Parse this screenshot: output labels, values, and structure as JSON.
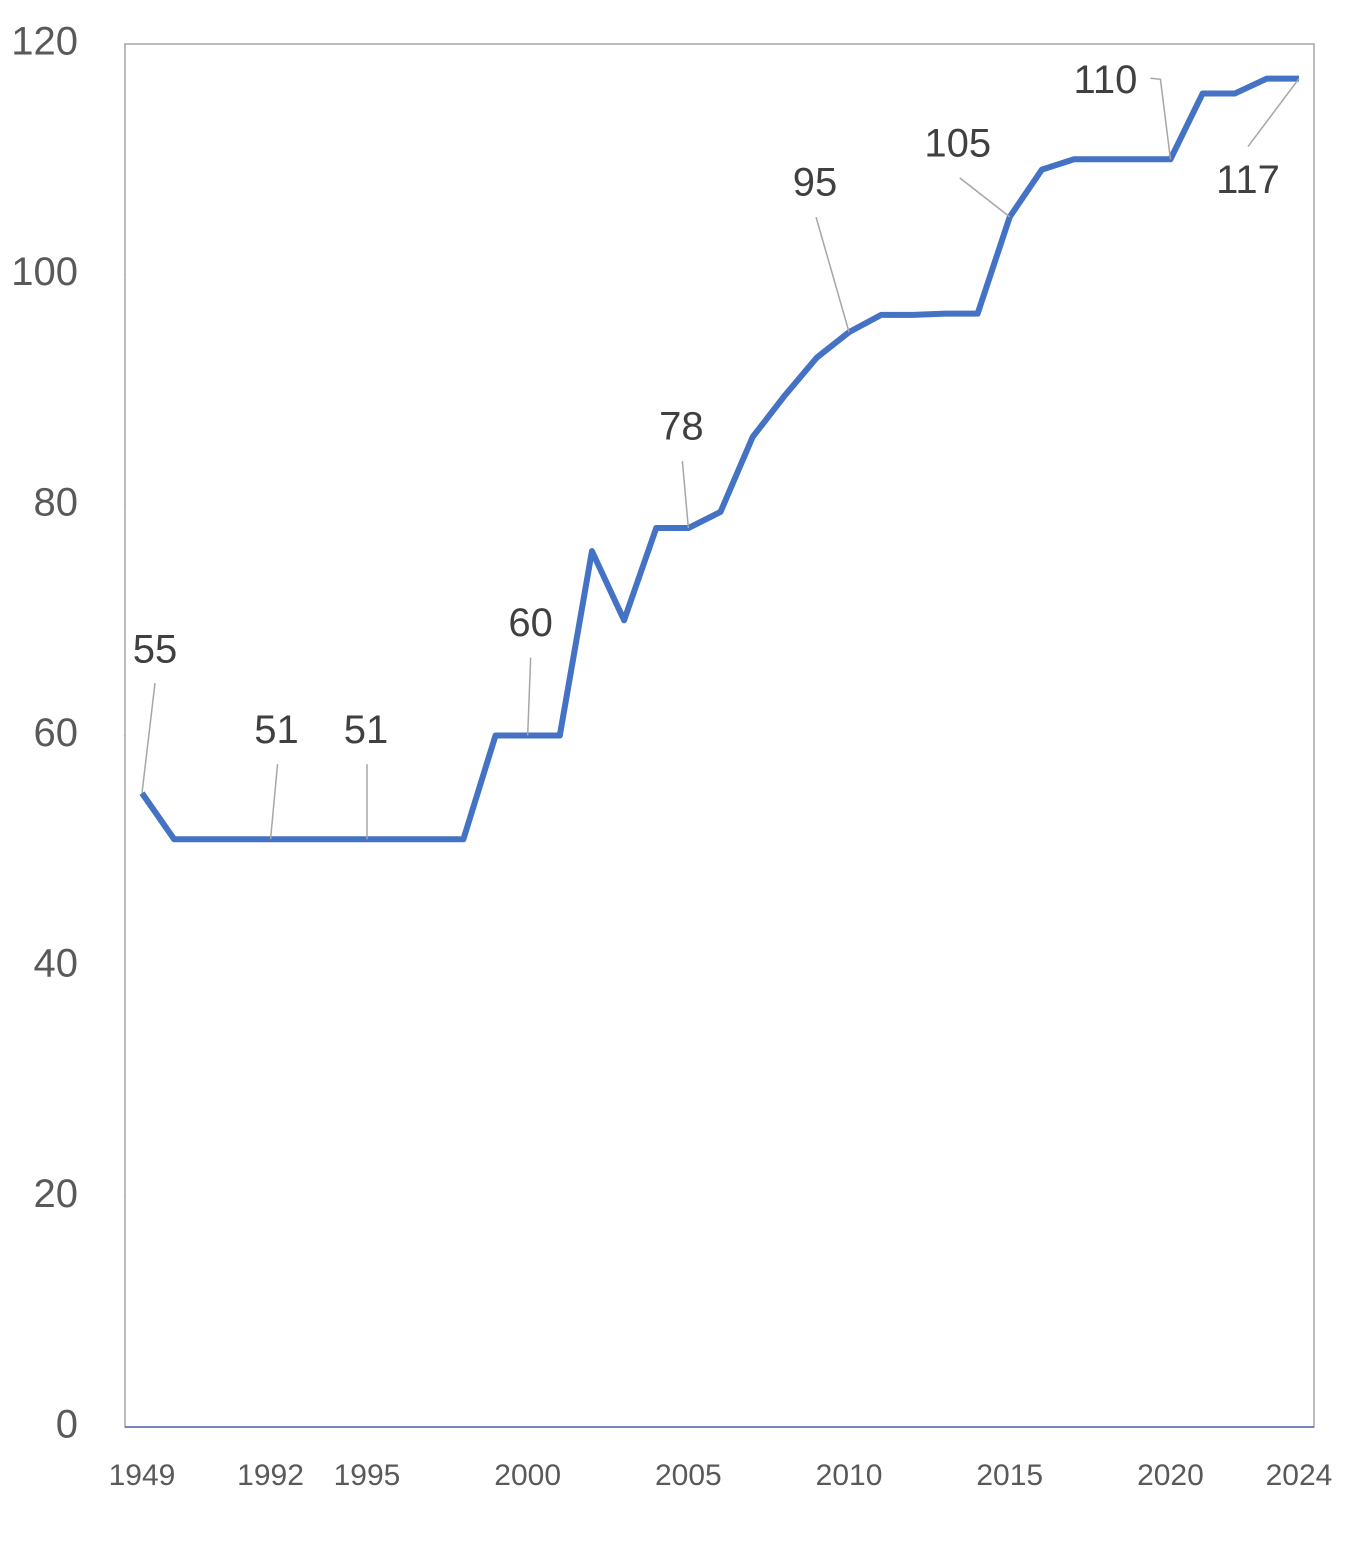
{
  "chart_data": {
    "type": "line",
    "categories": [
      "1949",
      null,
      null,
      null,
      "1992",
      null,
      null,
      "1995",
      null,
      null,
      null,
      null,
      "2000",
      null,
      null,
      null,
      null,
      "2005",
      null,
      null,
      null,
      null,
      "2010",
      null,
      null,
      null,
      null,
      "2015",
      null,
      null,
      null,
      null,
      "2020",
      null,
      null,
      null,
      "2024"
    ],
    "series": [
      {
        "color": "#4472c4",
        "values": [
          55,
          51,
          51,
          51,
          51,
          51,
          51,
          51,
          51,
          51,
          51,
          60,
          60,
          60,
          76,
          70,
          78,
          78,
          79.4,
          85.9,
          89.5,
          92.8,
          95,
          96.5,
          96.5,
          96.6,
          96.6,
          105,
          109.1,
          110,
          110,
          110,
          110,
          115.7,
          115.7,
          117,
          117
        ]
      }
    ],
    "ylim": [
      0,
      120
    ],
    "yticks": [
      0,
      20,
      40,
      60,
      80,
      100,
      120
    ],
    "grid": false
  }
}
